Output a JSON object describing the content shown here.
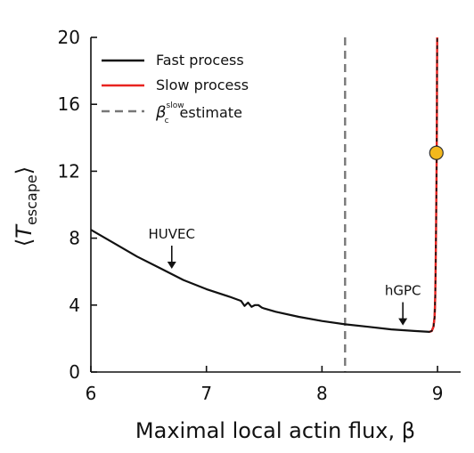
{
  "chart_data": {
    "type": "line",
    "xlabel": "Maximal local actin flux, β",
    "ylabel_main": "T",
    "ylabel_sub": "escape",
    "xlim": [
      6,
      9.2
    ],
    "ylim": [
      0,
      20
    ],
    "x_ticks": [
      "6",
      "7",
      "8",
      "9"
    ],
    "y_ticks": [
      "0",
      "4",
      "8",
      "12",
      "16",
      "20"
    ],
    "x_tick_values": [
      6,
      7,
      8,
      9
    ],
    "y_tick_values": [
      0,
      4,
      8,
      12,
      16,
      20
    ],
    "grid": false,
    "legend": {
      "placement": "top-left",
      "entries": [
        {
          "label": "Fast process",
          "style": "solid",
          "color": "#111111"
        },
        {
          "label": "Slow process",
          "style": "solid",
          "color": "#e8231f"
        },
        {
          "label_main": "β",
          "label_sup": "slow",
          "label_sub": "c",
          "label_rest": "estimate",
          "style": "dashed",
          "color": "#777777"
        }
      ]
    },
    "series": [
      {
        "name": "Fast process",
        "color": "#111111",
        "x": [
          6.0,
          6.2,
          6.4,
          6.6,
          6.7,
          6.8,
          7.0,
          7.2,
          7.3,
          7.33,
          7.36,
          7.39,
          7.42,
          7.45,
          7.48,
          7.5,
          7.6,
          7.8,
          8.0,
          8.2,
          8.4,
          8.6,
          8.8,
          8.93,
          8.95,
          8.965,
          8.975,
          8.98
        ],
        "y": [
          8.5,
          7.7,
          6.9,
          6.2,
          5.85,
          5.5,
          4.95,
          4.5,
          4.25,
          3.95,
          4.15,
          3.9,
          4.0,
          4.0,
          3.85,
          3.8,
          3.6,
          3.3,
          3.05,
          2.85,
          2.7,
          2.55,
          2.45,
          2.4,
          2.45,
          2.7,
          3.3,
          4.5
        ]
      },
      {
        "name": "Slow process",
        "color": "#e8231f",
        "x": [
          8.93,
          8.95,
          8.965,
          8.975,
          8.98,
          8.984,
          8.988,
          8.991,
          8.993,
          8.995,
          8.996,
          8.997
        ],
        "y": [
          2.4,
          2.45,
          2.7,
          3.3,
          4.5,
          6.5,
          9.0,
          11.5,
          13.5,
          16.0,
          18.0,
          20.0
        ]
      }
    ],
    "threshold_line": {
      "x": 8.2,
      "color": "#777777"
    },
    "marker": {
      "x": 8.99,
      "y": 13.1,
      "color": "#f3b81c"
    },
    "annotations": [
      {
        "text": "HUVEC",
        "x": 6.7,
        "y": 5.85
      },
      {
        "text": "hGPC",
        "x": 8.7,
        "y": 2.47
      }
    ]
  }
}
